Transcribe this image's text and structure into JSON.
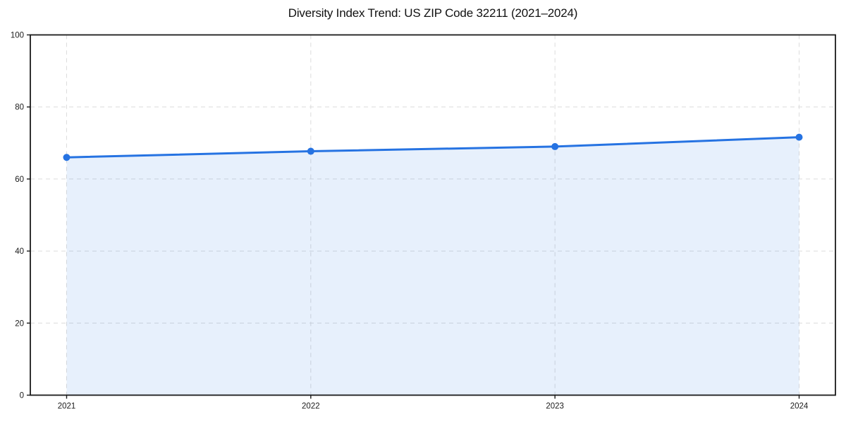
{
  "chart_data": {
    "type": "area",
    "title": "Diversity Index Trend: US ZIP Code 32211 (2021–2024)",
    "x": [
      "2021",
      "2022",
      "2023",
      "2024"
    ],
    "series": [
      {
        "name": "Diversity Index",
        "values": [
          66,
          67.7,
          69,
          71.6
        ]
      }
    ],
    "xlabel": "",
    "ylabel": "",
    "ylim": [
      0,
      100
    ],
    "yticks": [
      0,
      20,
      40,
      60,
      80,
      100
    ],
    "grid": "dashed",
    "legend": "none",
    "colors": {
      "line": "#2673e2",
      "marker": "#2673e2",
      "fill": "rgba(38, 115, 226, 0.11)",
      "grid": "#dcdcdc",
      "axis": "#1a1a1a",
      "text": "#1a1a1a",
      "background": "#ffffff"
    }
  }
}
